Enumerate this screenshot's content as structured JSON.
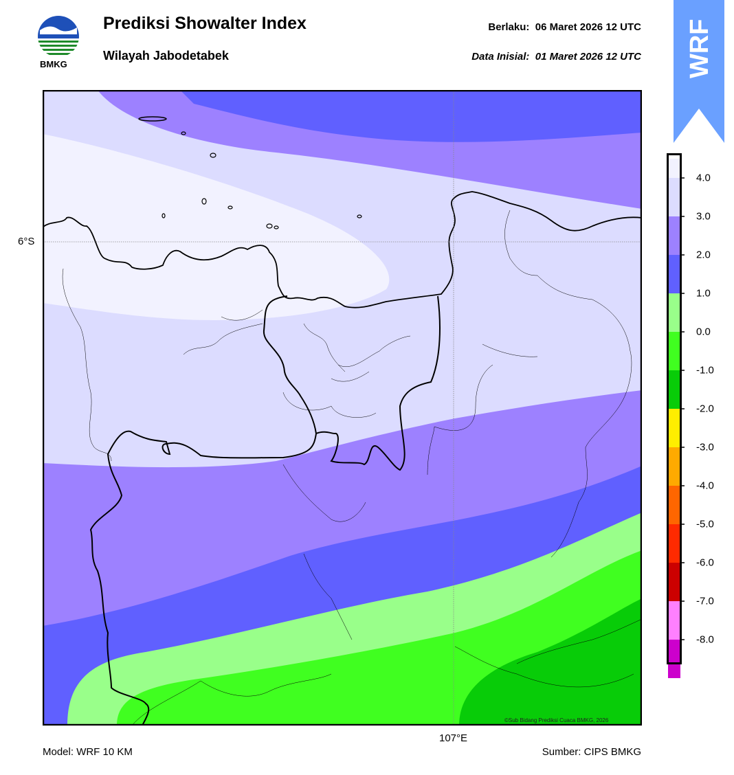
{
  "header": {
    "title": "Prediksi Showalter Index",
    "subtitle": "Wilayah Jabodetabek",
    "valid_label": "Berlaku:",
    "valid_value": "06 Maret 2026 12 UTC",
    "init_label": "Data Inisial:",
    "init_value": "01 Maret 2026 12 UTC"
  },
  "logo": {
    "text": "BMKG",
    "icon": "bmkg-logo-icon"
  },
  "badge": {
    "text": "WRF",
    "color": "#6aa0ff"
  },
  "map": {
    "lat_label": "6°S",
    "lon_label": "107°E",
    "copyright": "©Sub Bidang Prediksi Cuaca BMKG, 2026",
    "gridlines": true
  },
  "colorbar": {
    "labels": [
      "4.0",
      "3.0",
      "2.0",
      "1.0",
      "0.0",
      "-1.0",
      "-2.0",
      "-3.0",
      "-4.0",
      "-5.0",
      "-6.0",
      "-7.0",
      "-8.0"
    ],
    "colors": [
      "#f2f2ff",
      "#dcdcff",
      "#9d81ff",
      "#6060ff",
      "#99ff8a",
      "#40ff20",
      "#08cc08",
      "#ffee00",
      "#ffaa00",
      "#ff6600",
      "#ff2a00",
      "#cc0000",
      "#ff80ff",
      "#cc00cc",
      "#660066"
    ]
  },
  "footer": {
    "model": "Model: WRF 10 KM",
    "source": "Sumber: CIPS BMKG"
  }
}
